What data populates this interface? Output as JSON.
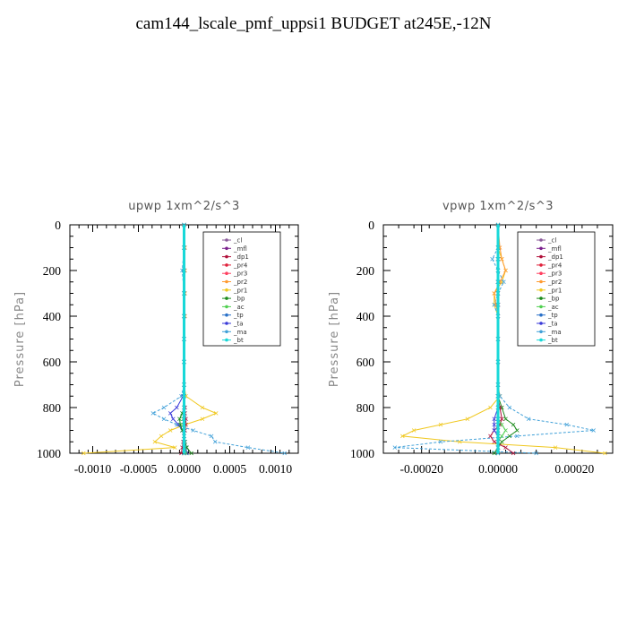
{
  "title": "cam144_lscale_pmf_uppsi1  BUDGET at245E,-12N",
  "chart_data": [
    {
      "type": "line",
      "title": "upwp   1xm^2/s^3",
      "ylabel": "Pressure [hPa]",
      "xlabel": "",
      "xlim": [
        -0.00125,
        0.00125
      ],
      "ylim": [
        1000,
        0
      ],
      "xticks": [
        -0.001,
        -0.0005,
        0.0,
        0.0005,
        0.001
      ],
      "xtick_labels": [
        "-0.0010",
        "-0.0005",
        "0.0000",
        "0.0005",
        "0.0010"
      ],
      "yticks": [
        0,
        200,
        400,
        600,
        800,
        1000
      ],
      "ytick_labels": [
        "0",
        "200",
        "400",
        "600",
        "800",
        "1000"
      ],
      "legend_position": "top-right",
      "pressure": [
        0,
        100,
        200,
        300,
        400,
        500,
        600,
        700,
        750,
        800,
        825,
        850,
        875,
        900,
        925,
        950,
        975,
        1000
      ],
      "series": [
        {
          "name": "_cl",
          "color": "#8a5a9a",
          "values": [
            0,
            0,
            0,
            0,
            0,
            0,
            0,
            0,
            0,
            0,
            0,
            0,
            0,
            0,
            0,
            0,
            0,
            0
          ]
        },
        {
          "name": "_mfl",
          "color": "#7a1f8c",
          "values": [
            0,
            0,
            0,
            0,
            0,
            0,
            0,
            0,
            0,
            0,
            0,
            0,
            0,
            0,
            0,
            0,
            0,
            0
          ]
        },
        {
          "name": "_dp1",
          "color": "#b0103a",
          "values": [
            0,
            0,
            0,
            0,
            0,
            0,
            0,
            0,
            0,
            1e-05,
            1e-05,
            2e-05,
            2e-05,
            1e-05,
            0,
            -1e-05,
            -2e-05,
            -3e-05
          ]
        },
        {
          "name": "_pr4",
          "color": "#e0203a",
          "values": [
            0,
            0,
            0,
            0,
            0,
            0,
            0,
            0,
            0,
            0,
            0,
            0,
            0,
            0,
            0,
            0,
            0,
            0
          ]
        },
        {
          "name": "_pr3",
          "color": "#ff4060",
          "values": [
            0,
            0,
            0,
            0,
            0,
            0,
            0,
            0,
            0,
            0,
            0,
            0,
            0,
            0,
            0,
            0,
            0,
            0
          ]
        },
        {
          "name": "_pr2",
          "color": "#ff9a30",
          "values": [
            0,
            1e-05,
            1e-05,
            1e-05,
            1e-05,
            0,
            0,
            0,
            0,
            0,
            0,
            0,
            0,
            0,
            0,
            0,
            0,
            0
          ]
        },
        {
          "name": "_pr1",
          "color": "#f0c820",
          "values": [
            0,
            0,
            0,
            0,
            0,
            0,
            0,
            0,
            2e-05,
            0.0002,
            0.00035,
            0.0002,
            1e-05,
            -0.00015,
            -0.00025,
            -0.00032,
            -0.0001,
            -0.0011
          ]
        },
        {
          "name": "_bp",
          "color": "#1a8a1a",
          "values": [
            0,
            0,
            0,
            0,
            0,
            0,
            0,
            0,
            0,
            0,
            -2e-05,
            -5e-05,
            -4e-05,
            -2e-05,
            0,
            1e-05,
            3e-05,
            8e-05
          ]
        },
        {
          "name": "_ac",
          "color": "#50d050",
          "values": [
            0,
            0,
            0,
            0,
            0,
            0,
            0,
            0,
            0,
            0,
            0,
            -1e-05,
            -1e-05,
            0,
            0,
            0,
            1e-05,
            2e-05
          ]
        },
        {
          "name": "_tp",
          "color": "#2870c8",
          "values": [
            0,
            0,
            0,
            0,
            0,
            0,
            0,
            0,
            0,
            0,
            0,
            0,
            0,
            0,
            0,
            0,
            0,
            0
          ]
        },
        {
          "name": "_ta",
          "color": "#3a3ad8",
          "values": [
            0,
            0,
            0,
            0,
            0,
            0,
            0,
            0,
            -1e-05,
            -8e-05,
            -0.00015,
            -0.00012,
            -6e-05,
            -2e-05,
            0,
            1e-05,
            2e-05,
            3e-05
          ]
        },
        {
          "name": "_ma",
          "color": "#40a0d8",
          "values": [
            0,
            0,
            -2e-05,
            0,
            0,
            0,
            0,
            0,
            -3e-05,
            -0.00022,
            -0.00034,
            -0.00022,
            -8e-05,
            0.0001,
            0.0003,
            0.00034,
            0.0007,
            0.0011
          ]
        },
        {
          "name": "_bt",
          "color": "#18d8d8",
          "values": [
            0,
            0,
            0,
            0,
            0,
            0,
            0,
            0,
            0,
            0,
            0,
            0,
            0,
            0,
            0,
            0,
            0,
            0
          ]
        }
      ]
    },
    {
      "type": "line",
      "title": "vpwp   1xm^2/s^3",
      "ylabel": "Pressure [hPa]",
      "xlabel": "",
      "xlim": [
        -0.0003,
        0.0003
      ],
      "ylim": [
        1000,
        0
      ],
      "xticks": [
        -0.0002,
        0.0,
        0.0002
      ],
      "xtick_labels": [
        "-0.00020",
        "0.00000",
        "0.00020"
      ],
      "yticks": [
        0,
        200,
        400,
        600,
        800,
        1000
      ],
      "ytick_labels": [
        "0",
        "200",
        "400",
        "600",
        "800",
        "1000"
      ],
      "legend_position": "top-right",
      "pressure": [
        0,
        100,
        150,
        200,
        250,
        300,
        350,
        400,
        500,
        600,
        700,
        750,
        800,
        850,
        875,
        900,
        925,
        950,
        975,
        1000
      ],
      "series": [
        {
          "name": "_cl",
          "color": "#8a5a9a",
          "values": [
            0,
            0,
            0,
            0,
            0,
            0,
            0,
            0,
            0,
            0,
            0,
            0,
            0,
            0,
            0,
            0,
            0,
            0,
            0,
            0
          ]
        },
        {
          "name": "_mfl",
          "color": "#7a1f8c",
          "values": [
            0,
            0,
            0,
            0,
            0,
            0,
            0,
            0,
            0,
            0,
            0,
            0,
            0,
            0,
            0,
            0,
            0,
            0,
            0,
            0
          ]
        },
        {
          "name": "_dp1",
          "color": "#b0103a",
          "values": [
            0,
            0,
            0,
            0,
            0,
            0,
            0,
            0,
            0,
            0,
            0,
            0,
            5e-06,
            1e-05,
            5e-06,
            -1e-05,
            -2e-05,
            -1e-05,
            2e-05,
            4e-05
          ]
        },
        {
          "name": "_pr4",
          "color": "#e0203a",
          "values": [
            0,
            0,
            0,
            0,
            0,
            0,
            0,
            0,
            0,
            0,
            0,
            0,
            0,
            0,
            0,
            0,
            0,
            0,
            0,
            0
          ]
        },
        {
          "name": "_pr3",
          "color": "#ff4060",
          "values": [
            0,
            0,
            0,
            0,
            0,
            0,
            0,
            0,
            0,
            0,
            0,
            0,
            0,
            0,
            0,
            0,
            0,
            0,
            0,
            0
          ]
        },
        {
          "name": "_pr2",
          "color": "#ff9a30",
          "values": [
            0,
            5e-06,
            1e-05,
            2e-05,
            5e-06,
            -1e-05,
            -5e-06,
            0,
            0,
            0,
            0,
            0,
            0,
            0,
            0,
            0,
            0,
            0,
            0,
            0
          ]
        },
        {
          "name": "_pr1",
          "color": "#f0c820",
          "values": [
            0,
            0,
            1e-05,
            2e-05,
            1e-05,
            -1e-05,
            -1e-05,
            0,
            0,
            0,
            0,
            5e-06,
            -2e-05,
            -8e-05,
            -0.00015,
            -0.00022,
            -0.00025,
            -0.0001,
            0.00015,
            0.00028
          ]
        },
        {
          "name": "_bp",
          "color": "#1a8a1a",
          "values": [
            0,
            0,
            0,
            0,
            0,
            0,
            0,
            0,
            0,
            0,
            0,
            0,
            1e-05,
            2e-05,
            4e-05,
            5e-05,
            3e-05,
            1e-05,
            0,
            -1e-05
          ]
        },
        {
          "name": "_ac",
          "color": "#50d050",
          "values": [
            0,
            0,
            0,
            0,
            0,
            0,
            0,
            0,
            0,
            0,
            0,
            0,
            0,
            0,
            1e-05,
            2e-05,
            1e-05,
            0,
            0,
            0
          ]
        },
        {
          "name": "_tp",
          "color": "#2870c8",
          "values": [
            0,
            0,
            0,
            0,
            0,
            0,
            0,
            0,
            0,
            0,
            0,
            0,
            0,
            0,
            0,
            0,
            0,
            0,
            0,
            0
          ]
        },
        {
          "name": "_ta",
          "color": "#3a3ad8",
          "values": [
            0,
            0,
            0,
            0,
            0,
            0,
            0,
            0,
            0,
            0,
            0,
            0,
            0,
            -1e-05,
            -1e-05,
            -1e-05,
            0,
            0,
            0,
            0
          ]
        },
        {
          "name": "_ma",
          "color": "#40a0d8",
          "values": [
            0,
            0,
            -1.5e-05,
            0,
            1.5e-05,
            0,
            -1e-05,
            0,
            0,
            0,
            0,
            5e-06,
            3e-05,
            8e-05,
            0.00018,
            0.00025,
            5e-05,
            -0.00015,
            -0.00027,
            0.0001
          ]
        },
        {
          "name": "_bt",
          "color": "#18d8d8",
          "values": [
            0,
            0,
            0,
            0,
            0,
            0,
            0,
            0,
            0,
            0,
            0,
            0,
            0,
            0,
            0,
            0,
            0,
            0,
            0,
            0
          ]
        }
      ]
    }
  ]
}
